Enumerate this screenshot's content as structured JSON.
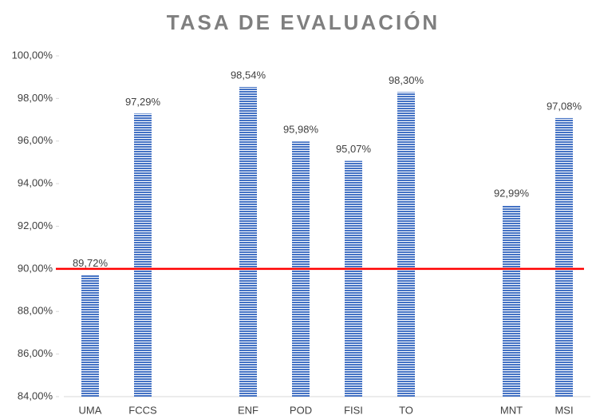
{
  "chart_data": {
    "type": "bar",
    "title": "TASA DE EVALUACIÓN",
    "categories": [
      "UMA",
      "FCCS",
      null,
      "ENF",
      "POD",
      "FISI",
      "TO",
      null,
      "MNT",
      "MSI"
    ],
    "values": [
      89.72,
      97.29,
      null,
      98.54,
      95.98,
      95.07,
      98.3,
      null,
      92.99,
      97.08
    ],
    "value_labels": [
      "89,72%",
      "97,29%",
      null,
      "98,54%",
      "95,98%",
      "95,07%",
      "98,30%",
      null,
      "92,99%",
      "97,08%"
    ],
    "color": "#4472c4",
    "ylim": [
      84,
      100
    ],
    "yticks": [
      {
        "value": 84,
        "label": "84,00%"
      },
      {
        "value": 86,
        "label": "86,00%"
      },
      {
        "value": 88,
        "label": "88,00%"
      },
      {
        "value": 90,
        "label": "90,00%"
      },
      {
        "value": 92,
        "label": "92,00%"
      },
      {
        "value": 94,
        "label": "94,00%"
      },
      {
        "value": 96,
        "label": "96,00%"
      },
      {
        "value": 98,
        "label": "98,00%"
      },
      {
        "value": 100,
        "label": "100,00%"
      }
    ],
    "grid": false,
    "reference_line": {
      "value": 90,
      "color": "#ff0000"
    }
  }
}
